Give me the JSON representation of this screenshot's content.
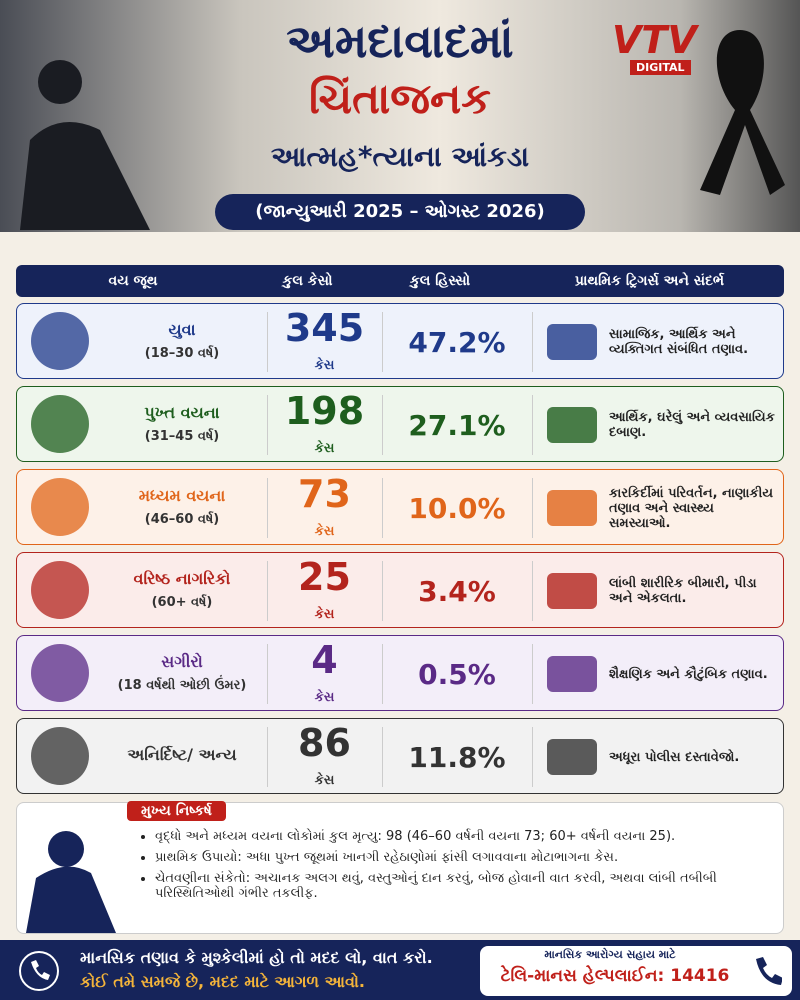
{
  "header": {
    "title_lines": [
      "અમદાવાદમાં",
      "ચિંતાજનક",
      "આત્મહ*ત્યાના આંકડા"
    ],
    "subtitle": "(જાન્યુઆરી 2025 – ઓગસ્ટ 2026)",
    "logo": "VTV",
    "logo_sub": "DIGITAL"
  },
  "table": {
    "headers": [
      "વય જૂથ",
      "કુલ કેસો",
      "કુલ હિસ્સો",
      "પ્રાથમિક ટ્રિગર્સ અને સંદર્ભ"
    ],
    "rows": [
      {
        "group": "યુવા",
        "age": "(18–30 વર્ષ)",
        "count": "345",
        "unit": "કેસ",
        "share": "47.2%",
        "trigger": "સામાજિક, આર્થિક અને વ્યક્તિગત સંબંધિત તણાવ.",
        "color": "#1f3a8a",
        "bg": "#eef2fb"
      },
      {
        "group": "પુખ્ત વયના",
        "age": "(31–45 વર્ષ)",
        "count": "198",
        "unit": "કેસ",
        "share": "27.1%",
        "trigger": "આર્થિક, ઘરેલું અને વ્યવસાયિક દબાણ.",
        "color": "#1e5e1e",
        "bg": "#eef6ec"
      },
      {
        "group": "મધ્યમ વયના",
        "age": "(46–60 વર્ષ)",
        "count": "73",
        "unit": "કેસ",
        "share": "10.0%",
        "trigger": "કારકિર્દીમાં પરિવર્તન, નાણાકીય તણાવ અને સ્વાસ્થ્ય સમસ્યાઓ.",
        "color": "#e0651a",
        "bg": "#fdf1e8"
      },
      {
        "group": "વરિષ્ઠ નાગરિકો",
        "age": "(60+ વર્ષ)",
        "count": "25",
        "unit": "કેસ",
        "share": "3.4%",
        "trigger": "લાંબી શારીરિક બીમારી, પીડા અને એકલતા.",
        "color": "#b3241d",
        "bg": "#fbecea"
      },
      {
        "group": "સગીરો",
        "age": "(18 વર્ષથી ઓછી ઉંમર)",
        "count": "4",
        "unit": "કેસ",
        "share": "0.5%",
        "trigger": "શૈક્ષણિક અને કૌટુંબિક તણાવ.",
        "color": "#5a2a86",
        "bg": "#f3eef9"
      },
      {
        "group": "અનિર્દિષ્ટ/ અન્ય",
        "count": "86",
        "unit": "કેસ",
        "share": "11.8%",
        "trigger": "અધૂરા પોલીસ દસ્તાવેજો.",
        "color": "#333333",
        "bg": "#f2f2f2"
      }
    ]
  },
  "findings": {
    "title": "મુખ્ય નિષ્કર્ષ",
    "items": [
      "વૃદ્ધો અને મધ્યમ વયના લોકોમાં કુલ મૃત્યુ: 98 (46–60 વર્ષની વયના 73; 60+ વર્ષની વયના 25).",
      "પ્રાથમિક ઉપાયો: અધા પુખ્ત જૂથમાં ખાનગી રહેઠાણોમાં ફાંસી લગાવવાના મોટાભાગના કેસ.",
      "ચેતવણીના સંકેતો: અચાનક અલગ થવું, વસ્તુઓનું દાન કરવું, બોજ હોવાની વાત કરવી, અથવા લાંબી તબીબી પરિસ્થિતિઓથી ગંભીર તકલીફ."
    ]
  },
  "footer": {
    "line1": "માનસિક તણાવ કે મુશ્કેલીમાં હો તો મદદ લો, વાત કરો.",
    "line2": "કોઈ તમે સમજે છે, મદદ માટે આગળ આવો.",
    "help_label": "માનસિક આરોગ્ય સહાય માટે",
    "helpline": "ટેલિ-માનસ હેલ્પલાઈન: 14416"
  }
}
